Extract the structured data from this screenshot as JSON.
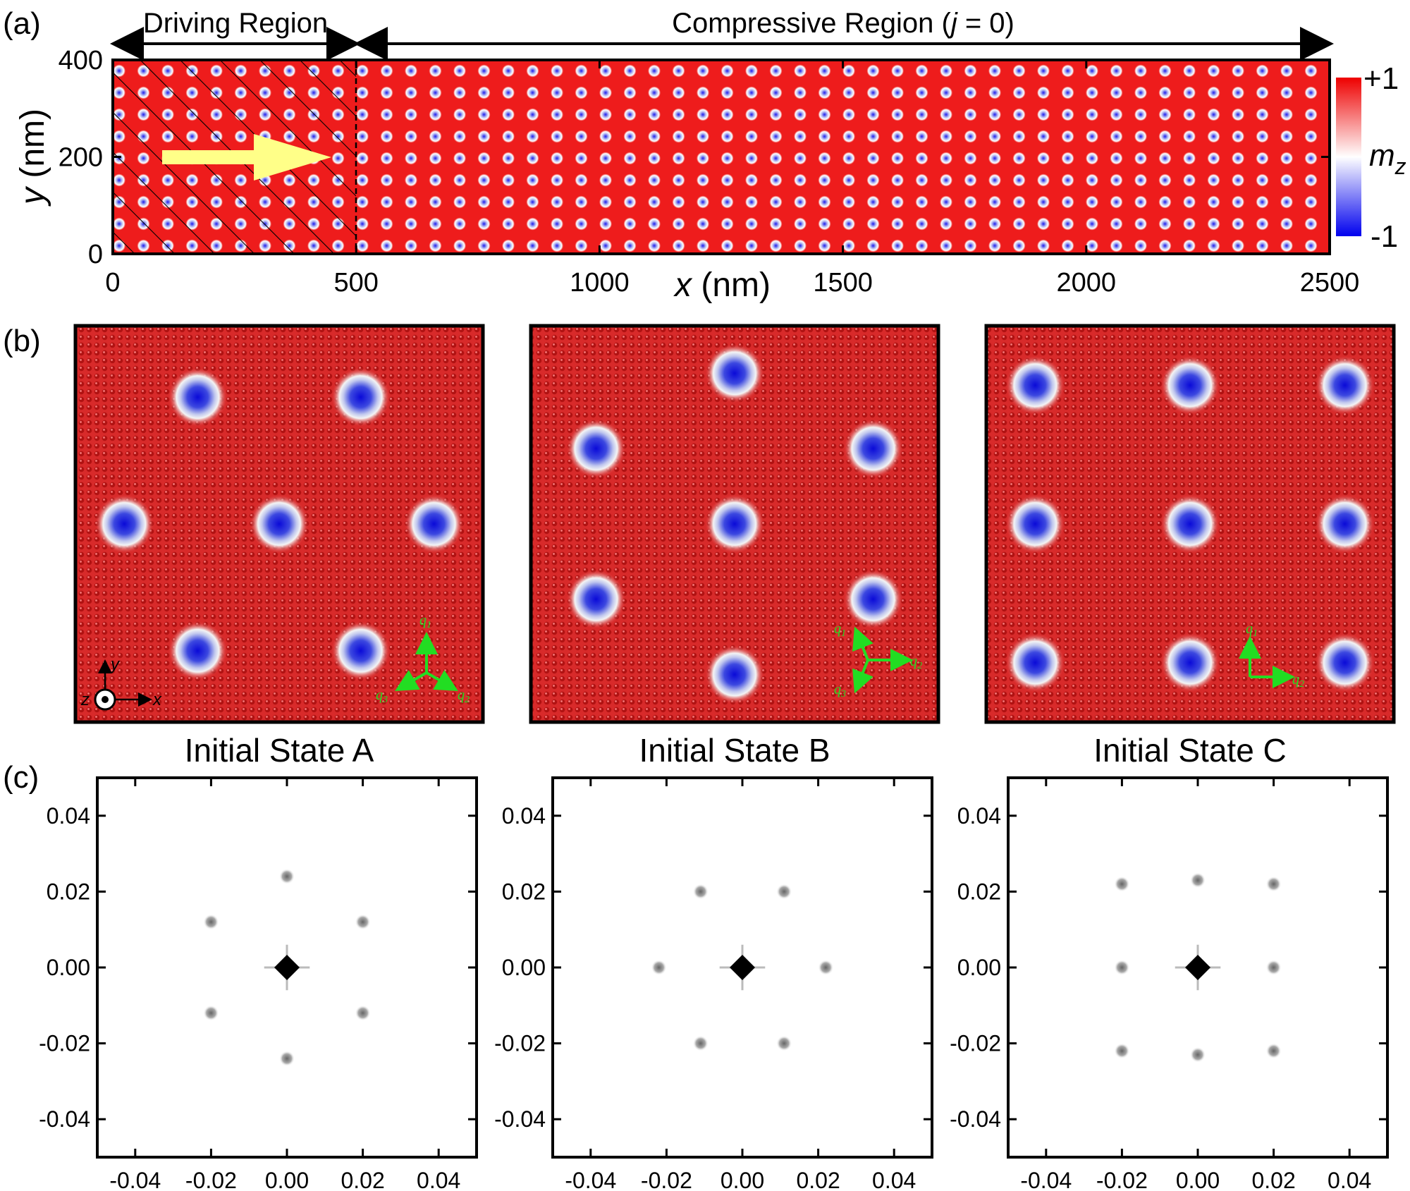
{
  "panel_labels": {
    "a": "(a)",
    "b": "(b)",
    "c": "(c)"
  },
  "panel_a": {
    "driving_region_label": "Driving Region",
    "compressive_region_label": "Compressive Region (",
    "compressive_j": "j",
    "compressive_suffix": " = 0)",
    "x_axis_label": "x",
    "x_axis_unit": " (nm)",
    "y_axis_label": "y",
    "y_axis_unit": " (nm)",
    "x_ticks": [
      "0",
      "500",
      "1000",
      "1500",
      "2000",
      "2500"
    ],
    "y_ticks": [
      "0",
      "200",
      "400"
    ],
    "colorbar": {
      "max_label": "+1",
      "min_label": "-1",
      "title": "m",
      "title_sub": "z",
      "max": 1,
      "min": -1
    },
    "colors": {
      "plus": "#ee0000",
      "minus": "#0000ee",
      "arrow": "#ffff88"
    },
    "driving_region_x_range": [
      0,
      500
    ],
    "x_range": [
      0,
      2500
    ],
    "y_range": [
      0,
      400
    ],
    "lattice_rows": 8,
    "lattice_cols": 50
  },
  "panel_b": {
    "states": [
      {
        "caption": "Initial State A",
        "skyrmions": [
          [
            0.3,
            0.18
          ],
          [
            0.7,
            0.18
          ],
          [
            0.12,
            0.5
          ],
          [
            0.5,
            0.5
          ],
          [
            0.88,
            0.5
          ],
          [
            0.3,
            0.82
          ],
          [
            0.7,
            0.82
          ]
        ],
        "basis_labels": [
          "q",
          "q",
          "q"
        ],
        "basis_subs": [
          "1",
          "2",
          "3"
        ]
      },
      {
        "caption": "Initial State B",
        "skyrmions": [
          [
            0.5,
            0.12
          ],
          [
            0.16,
            0.31
          ],
          [
            0.84,
            0.31
          ],
          [
            0.5,
            0.5
          ],
          [
            0.16,
            0.69
          ],
          [
            0.84,
            0.69
          ],
          [
            0.5,
            0.88
          ]
        ],
        "basis_labels": [
          "q",
          "q",
          "q"
        ],
        "basis_subs": [
          "1",
          "2",
          "3"
        ]
      },
      {
        "caption": "Initial State C",
        "skyrmions": [
          [
            0.12,
            0.15
          ],
          [
            0.5,
            0.15
          ],
          [
            0.88,
            0.15
          ],
          [
            0.12,
            0.5
          ],
          [
            0.5,
            0.5
          ],
          [
            0.88,
            0.5
          ],
          [
            0.12,
            0.85
          ],
          [
            0.5,
            0.85
          ],
          [
            0.88,
            0.85
          ]
        ],
        "basis_labels": [
          "q",
          "q"
        ],
        "basis_subs": [
          "1",
          "2"
        ]
      }
    ],
    "coord_labels": {
      "y": "y",
      "x": "x",
      "z": "z"
    }
  },
  "panel_c": {
    "x_ticks": [
      "-0.04",
      "-0.02",
      "0.00",
      "0.02",
      "0.04"
    ],
    "y_ticks": [
      "0.04",
      "0.02",
      "0.00",
      "-0.02",
      "-0.04"
    ],
    "range": [
      -0.05,
      0.05
    ],
    "spectra": [
      {
        "peaks": [
          [
            0,
            0.024
          ],
          [
            -0.02,
            0.012
          ],
          [
            0.02,
            0.012
          ],
          [
            -0.02,
            -0.012
          ],
          [
            0.02,
            -0.012
          ],
          [
            0,
            -0.024
          ]
        ]
      },
      {
        "peaks": [
          [
            -0.011,
            0.02
          ],
          [
            0.011,
            0.02
          ],
          [
            -0.022,
            0
          ],
          [
            0.022,
            0
          ],
          [
            -0.011,
            -0.02
          ],
          [
            0.011,
            -0.02
          ]
        ]
      },
      {
        "peaks": [
          [
            0,
            0.023
          ],
          [
            -0.02,
            0.022
          ],
          [
            0.02,
            0.022
          ],
          [
            -0.02,
            0
          ],
          [
            0.02,
            0
          ],
          [
            0,
            -0.023
          ],
          [
            -0.02,
            -0.022
          ],
          [
            0.02,
            -0.022
          ]
        ]
      }
    ]
  }
}
